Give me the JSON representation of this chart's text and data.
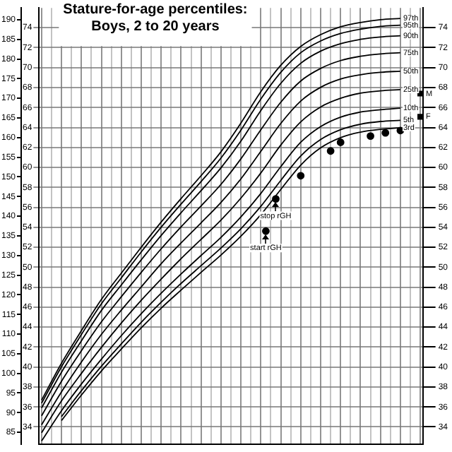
{
  "chart_data": {
    "type": "line",
    "title": "Stature-for-age percentiles:",
    "subtitle": "Boys, 2 to 20 years",
    "categories": [
      null,
      null,
      null,
      null,
      null,
      null,
      null,
      null,
      null,
      null,
      null,
      null,
      null,
      null,
      null,
      null,
      null,
      null,
      null,
      null,
      null,
      null,
      null,
      null,
      null,
      null,
      null,
      null,
      null,
      null,
      null,
      null,
      null,
      null,
      null,
      null,
      null,
      null,
      null,
      null,
      null,
      null,
      null,
      null,
      null,
      null,
      null,
      null,
      null,
      null,
      null,
      null,
      null,
      null,
      null,
      null,
      null,
      null,
      null,
      null,
      null,
      null,
      null,
      null,
      null,
      null,
      null,
      null,
      null,
      null,
      null,
      null,
      null,
      null,
      null,
      null,
      null
    ],
    "series": [
      {
        "name": "97th",
        "color": "#000000",
        "marker": "none",
        "values": [
          93.2,
          null,
          null,
          null,
          102.6,
          null,
          null,
          null,
          110.9,
          null,
          null,
          null,
          118.8,
          null,
          null,
          null,
          125.5,
          null,
          null,
          null,
          132.1,
          null,
          null,
          null,
          138.5,
          null,
          null,
          null,
          144.5,
          null,
          null,
          null,
          150.3,
          null,
          null,
          null,
          156.4,
          null,
          null,
          null,
          163.7,
          null,
          null,
          null,
          171.7,
          null,
          null,
          null,
          178.4,
          null,
          null,
          null,
          183.2,
          null,
          null,
          null,
          186.2,
          null,
          null,
          null,
          188.2,
          null,
          null,
          null,
          189.3,
          null,
          null,
          null,
          190.0,
          null,
          null,
          null,
          190.3,
          null,
          null,
          null,
          null
        ]
      },
      {
        "name": "95th",
        "color": "#000000",
        "marker": "none",
        "values": [
          92.4,
          null,
          null,
          null,
          101.7,
          null,
          null,
          null,
          109.9,
          null,
          null,
          null,
          117.7,
          null,
          null,
          null,
          124.3,
          null,
          null,
          null,
          130.9,
          null,
          null,
          null,
          137.2,
          null,
          null,
          null,
          143.1,
          null,
          null,
          null,
          148.8,
          null,
          null,
          null,
          154.8,
          null,
          null,
          null,
          161.9,
          null,
          null,
          null,
          169.8,
          null,
          null,
          null,
          176.6,
          null,
          null,
          null,
          181.6,
          null,
          null,
          null,
          184.6,
          null,
          null,
          null,
          186.5,
          null,
          null,
          null,
          187.6,
          null,
          null,
          null,
          188.3,
          null,
          null,
          null,
          188.6,
          null,
          null,
          null,
          null
        ]
      },
      {
        "name": "90th",
        "color": "#000000",
        "marker": "none",
        "values": [
          91.2,
          null,
          null,
          null,
          100.3,
          null,
          null,
          null,
          108.3,
          null,
          null,
          null,
          116.0,
          null,
          null,
          null,
          122.5,
          null,
          null,
          null,
          128.9,
          null,
          null,
          null,
          135.1,
          null,
          null,
          null,
          140.9,
          null,
          null,
          null,
          146.5,
          null,
          null,
          null,
          152.3,
          null,
          null,
          null,
          159.1,
          null,
          null,
          null,
          166.9,
          null,
          null,
          null,
          173.8,
          null,
          null,
          null,
          178.9,
          null,
          null,
          null,
          182.0,
          null,
          null,
          null,
          183.9,
          null,
          null,
          null,
          185.0,
          null,
          null,
          null,
          185.6,
          null,
          null,
          null,
          185.9,
          null,
          null,
          null,
          null
        ]
      },
      {
        "name": "75th",
        "color": "#000000",
        "marker": "none",
        "values": [
          89.2,
          null,
          null,
          null,
          98.0,
          null,
          null,
          null,
          105.8,
          null,
          null,
          null,
          113.1,
          null,
          null,
          null,
          119.5,
          null,
          null,
          null,
          125.7,
          null,
          null,
          null,
          131.7,
          null,
          null,
          null,
          137.3,
          null,
          null,
          null,
          142.6,
          null,
          null,
          null,
          148.1,
          null,
          null,
          null,
          154.6,
          null,
          null,
          null,
          162.0,
          null,
          null,
          null,
          169.0,
          null,
          null,
          null,
          174.4,
          null,
          null,
          null,
          177.6,
          null,
          null,
          null,
          179.6,
          null,
          null,
          null,
          180.7,
          null,
          null,
          null,
          181.3,
          null,
          null,
          null,
          181.6,
          null,
          null,
          null,
          null
        ]
      },
      {
        "name": "50th",
        "color": "#000000",
        "marker": "none",
        "values": [
          86.9,
          null,
          null,
          null,
          95.3,
          null,
          null,
          null,
          102.9,
          null,
          null,
          null,
          109.9,
          null,
          null,
          null,
          116.1,
          null,
          null,
          null,
          122.0,
          null,
          null,
          null,
          127.9,
          null,
          null,
          null,
          133.2,
          null,
          null,
          null,
          138.3,
          null,
          null,
          null,
          143.5,
          null,
          null,
          null,
          149.5,
          null,
          null,
          null,
          156.5,
          null,
          null,
          null,
          163.6,
          null,
          null,
          null,
          169.3,
          null,
          null,
          null,
          172.8,
          null,
          null,
          null,
          174.9,
          null,
          null,
          null,
          176.0,
          null,
          null,
          null,
          176.6,
          null,
          null,
          null,
          176.9,
          null,
          null,
          null,
          null
        ]
      },
      {
        "name": "25th",
        "color": "#000000",
        "marker": "none",
        "values": [
          84.9,
          null,
          null,
          null,
          93.0,
          null,
          null,
          null,
          100.0,
          null,
          null,
          null,
          106.6,
          null,
          null,
          null,
          112.8,
          null,
          null,
          null,
          118.6,
          null,
          null,
          null,
          124.0,
          null,
          null,
          null,
          129.2,
          null,
          null,
          null,
          134.1,
          null,
          null,
          null,
          139.0,
          null,
          null,
          null,
          144.6,
          null,
          null,
          null,
          151.0,
          null,
          null,
          null,
          158.1,
          null,
          null,
          null,
          164.0,
          null,
          null,
          null,
          167.8,
          null,
          null,
          null,
          170.0,
          null,
          null,
          null,
          171.3,
          null,
          null,
          null,
          171.9,
          null,
          null,
          null,
          172.2,
          null,
          null,
          null,
          null
        ]
      },
      {
        "name": "10th",
        "color": "#000000",
        "marker": "none",
        "values": [
          82.8,
          null,
          null,
          null,
          90.5,
          null,
          null,
          null,
          97.3,
          null,
          null,
          null,
          103.6,
          null,
          null,
          null,
          109.6,
          null,
          null,
          null,
          115.2,
          null,
          null,
          null,
          120.4,
          null,
          null,
          null,
          125.3,
          null,
          null,
          null,
          130.0,
          null,
          null,
          null,
          134.6,
          null,
          null,
          null,
          139.8,
          null,
          null,
          null,
          145.8,
          null,
          null,
          null,
          152.6,
          null,
          null,
          null,
          158.8,
          null,
          null,
          null,
          162.8,
          null,
          null,
          null,
          165.2,
          null,
          null,
          null,
          166.5,
          null,
          null,
          null,
          167.1,
          null,
          null,
          null,
          167.5,
          null,
          null,
          null,
          null
        ]
      },
      {
        "name": "5th",
        "color": "#000000",
        "marker": "none",
        "values": [
          null,
          null,
          null,
          null,
          89.0,
          null,
          null,
          null,
          95.6,
          null,
          null,
          null,
          101.8,
          null,
          null,
          null,
          107.5,
          null,
          null,
          null,
          113.0,
          null,
          null,
          null,
          118.1,
          null,
          null,
          null,
          122.9,
          null,
          null,
          null,
          127.4,
          null,
          null,
          null,
          131.9,
          null,
          null,
          null,
          136.8,
          null,
          null,
          null,
          142.5,
          null,
          null,
          null,
          149.1,
          null,
          null,
          null,
          155.3,
          null,
          null,
          null,
          159.5,
          null,
          null,
          null,
          162.0,
          null,
          null,
          null,
          163.4,
          null,
          null,
          null,
          164.1,
          null,
          null,
          null,
          164.4,
          null,
          null,
          null,
          null
        ]
      },
      {
        "name": "3rd",
        "color": "#000000",
        "marker": "none",
        "values": [
          null,
          null,
          null,
          null,
          88.0,
          null,
          null,
          null,
          94.5,
          null,
          null,
          null,
          100.6,
          null,
          null,
          null,
          106.2,
          null,
          null,
          null,
          111.6,
          null,
          null,
          null,
          116.6,
          null,
          null,
          null,
          121.2,
          null,
          null,
          null,
          125.7,
          null,
          null,
          null,
          130.1,
          null,
          null,
          null,
          134.9,
          null,
          null,
          null,
          140.4,
          null,
          null,
          null,
          146.8,
          null,
          null,
          null,
          153.0,
          null,
          null,
          null,
          157.4,
          null,
          null,
          null,
          160.0,
          null,
          null,
          null,
          161.4,
          null,
          null,
          null,
          162.1,
          null,
          null,
          null,
          162.5,
          null,
          null,
          null,
          null
        ]
      },
      {
        "type": "scatter",
        "color": "#000000",
        "marker": "circle",
        "values": [
          null,
          null,
          null,
          null,
          null,
          null,
          null,
          null,
          null,
          null,
          null,
          null,
          null,
          null,
          null,
          null,
          null,
          null,
          null,
          null,
          null,
          null,
          null,
          null,
          null,
          null,
          null,
          null,
          null,
          null,
          null,
          null,
          null,
          null,
          null,
          null,
          null,
          null,
          null,
          null,
          null,
          null,
          null,
          null,
          null,
          136.2,
          null,
          144.4,
          null,
          null,
          null,
          null,
          150.3,
          null,
          null,
          null,
          null,
          null,
          156.6,
          null,
          158.8,
          null,
          null,
          null,
          null,
          null,
          160.4,
          null,
          null,
          161.2,
          null,
          null,
          161.8,
          null,
          null,
          null,
          null
        ]
      },
      {
        "type": "scatter",
        "name": "M",
        "color": "#000000",
        "marker": "square",
        "values": [
          null,
          null,
          null,
          null,
          null,
          null,
          null,
          null,
          null,
          null,
          null,
          null,
          null,
          null,
          null,
          null,
          null,
          null,
          null,
          null,
          null,
          null,
          null,
          null,
          null,
          null,
          null,
          null,
          null,
          null,
          null,
          null,
          null,
          null,
          null,
          null,
          null,
          null,
          null,
          null,
          null,
          null,
          null,
          null,
          null,
          null,
          null,
          null,
          null,
          null,
          null,
          null,
          null,
          null,
          null,
          null,
          null,
          null,
          null,
          null,
          null,
          null,
          null,
          null,
          null,
          null,
          null,
          null,
          null,
          null,
          null,
          null,
          null,
          null,
          null,
          null,
          171.2
        ]
      },
      {
        "type": "scatter",
        "name": "F",
        "color": "#000000",
        "marker": "square",
        "values": [
          null,
          null,
          null,
          null,
          null,
          null,
          null,
          null,
          null,
          null,
          null,
          null,
          null,
          null,
          null,
          null,
          null,
          null,
          null,
          null,
          null,
          null,
          null,
          null,
          null,
          null,
          null,
          null,
          null,
          null,
          null,
          null,
          null,
          null,
          null,
          null,
          null,
          null,
          null,
          null,
          null,
          null,
          null,
          null,
          null,
          null,
          null,
          null,
          null,
          null,
          null,
          null,
          null,
          null,
          null,
          null,
          null,
          null,
          null,
          null,
          null,
          null,
          null,
          null,
          null,
          null,
          null,
          null,
          null,
          null,
          null,
          null,
          null,
          null,
          null,
          null,
          165.3
        ]
      }
    ],
    "annotations": [
      {
        "text": "start rGH",
        "y": 136.2
      },
      {
        "text": "stop rGH",
        "y": 144.4
      }
    ],
    "ylim": [
      82,
      193
    ],
    "yticks": [
      85,
      90,
      95,
      100,
      105,
      110,
      115,
      120,
      125,
      130,
      135,
      140,
      145,
      150,
      155,
      160,
      165,
      170,
      175,
      180,
      185,
      190
    ],
    "y2lim": [
      32.28,
      75.98
    ],
    "y2ticks": [
      34,
      36,
      38,
      40,
      42,
      44,
      46,
      48,
      50,
      52,
      54,
      56,
      58,
      60,
      62,
      64,
      66,
      68,
      70,
      72,
      74
    ],
    "y3lim": [
      32.28,
      75.98
    ],
    "y3ticks": [
      34,
      36,
      38,
      40,
      42,
      44,
      46,
      48,
      50,
      52,
      54,
      56,
      58,
      60,
      62,
      64,
      66,
      68,
      70,
      72,
      74
    ],
    "grid": true,
    "legend": false,
    "tick_labels": "y"
  }
}
